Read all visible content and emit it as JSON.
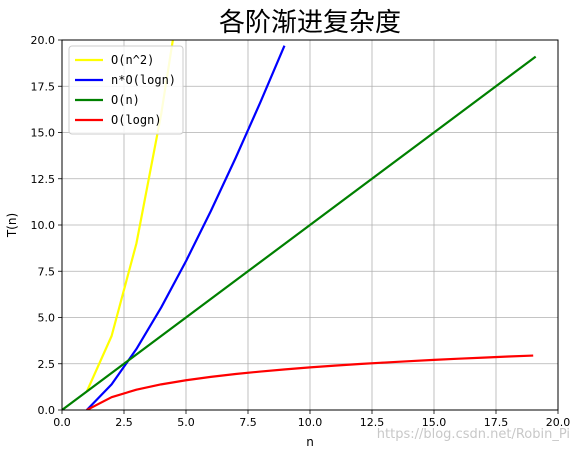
{
  "chart_data": {
    "type": "line",
    "title": "各阶渐进复杂度",
    "xlabel": "n",
    "ylabel": "T(n)",
    "xlim": [
      0.0,
      20.0
    ],
    "ylim": [
      0.0,
      20.0
    ],
    "xticks": [
      "0.0",
      "2.5",
      "5.0",
      "7.5",
      "10.0",
      "12.5",
      "15.0",
      "17.5",
      "20.0"
    ],
    "yticks": [
      "0.0",
      "2.5",
      "5.0",
      "7.5",
      "10.0",
      "12.5",
      "15.0",
      "17.5",
      "20.0"
    ],
    "grid": true,
    "legend_position": "top-left",
    "series": [
      {
        "name": "O(n^2)",
        "color": "#ffff00",
        "x": [
          1,
          2,
          3,
          4,
          4.47
        ],
        "y": [
          1,
          4,
          9,
          16,
          20
        ]
      },
      {
        "name": "n*O(logn)",
        "color": "#0000ff",
        "x": [
          1,
          2,
          3,
          4,
          5,
          6,
          7,
          8,
          8.97
        ],
        "y": [
          0,
          1.386,
          3.296,
          5.545,
          8.047,
          10.751,
          13.621,
          16.636,
          19.69
        ]
      },
      {
        "name": "O(n)",
        "color": "#008000",
        "x": [
          0,
          19.1
        ],
        "y": [
          0,
          19.1
        ]
      },
      {
        "name": "O(logn)",
        "color": "#ff0000",
        "x": [
          1,
          2,
          3,
          4,
          5,
          6,
          7,
          8,
          9,
          10,
          11,
          12,
          13,
          14,
          15,
          16,
          17,
          18,
          19
        ],
        "y": [
          0,
          0.693,
          1.099,
          1.386,
          1.609,
          1.792,
          1.946,
          2.079,
          2.197,
          2.303,
          2.398,
          2.485,
          2.565,
          2.639,
          2.708,
          2.773,
          2.833,
          2.89,
          2.944
        ]
      }
    ]
  },
  "watermark": "https://blog.csdn.net/Robin_Pi"
}
